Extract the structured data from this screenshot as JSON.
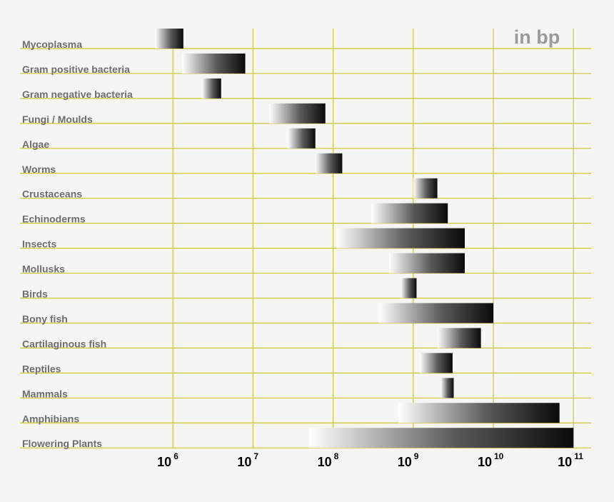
{
  "unit_label": "in bp",
  "colors": {
    "grid": "#c8c832",
    "label": "#6e6e6e",
    "unit": "#9a9a9a",
    "tick": "#000000"
  },
  "chart_data": {
    "type": "bar",
    "orientation": "horizontal-range",
    "x_scale": "log10",
    "xlim": [
      100000,
      100000000000
    ],
    "x_ticks": [
      {
        "base": "10",
        "exp": "6",
        "value": 1000000
      },
      {
        "base": "10",
        "exp": "7",
        "value": 10000000
      },
      {
        "base": "10",
        "exp": "8",
        "value": 100000000
      },
      {
        "base": "10",
        "exp": "9",
        "value": 1000000000
      },
      {
        "base": "10",
        "exp": "10",
        "value": 10000000000
      },
      {
        "base": "10",
        "exp": "11",
        "value": 100000000000
      }
    ],
    "grid": true,
    "categories": [
      "Mycoplasma",
      "Gram positive bacteria",
      "Gram negative bacteria",
      "Fungi / Moulds",
      "Algae",
      "Worms",
      "Crustaceans",
      "Echinoderms",
      "Insects",
      "Mollusks",
      "Birds",
      "Bony fish",
      "Cartilaginous fish",
      "Reptiles",
      "Mammals",
      "Amphibians",
      "Flowering Plants"
    ],
    "ranges": [
      [
        600000,
        1350000
      ],
      [
        1300000,
        8000000
      ],
      [
        2300000,
        4000000
      ],
      [
        16000000,
        80000000
      ],
      [
        27000000,
        60000000
      ],
      [
        60000000,
        130000000
      ],
      [
        1000000000,
        2000000000
      ],
      [
        300000000,
        2700000000
      ],
      [
        110000000,
        4400000000
      ],
      [
        500000000,
        4400000000
      ],
      [
        700000000,
        1100000000
      ],
      [
        370000000,
        10000000000
      ],
      [
        2000000000,
        7000000000
      ],
      [
        1200000000,
        3100000000
      ],
      [
        2200000000,
        3200000000
      ],
      [
        650000000,
        67000000000
      ],
      [
        50000000,
        100000000000
      ]
    ]
  }
}
